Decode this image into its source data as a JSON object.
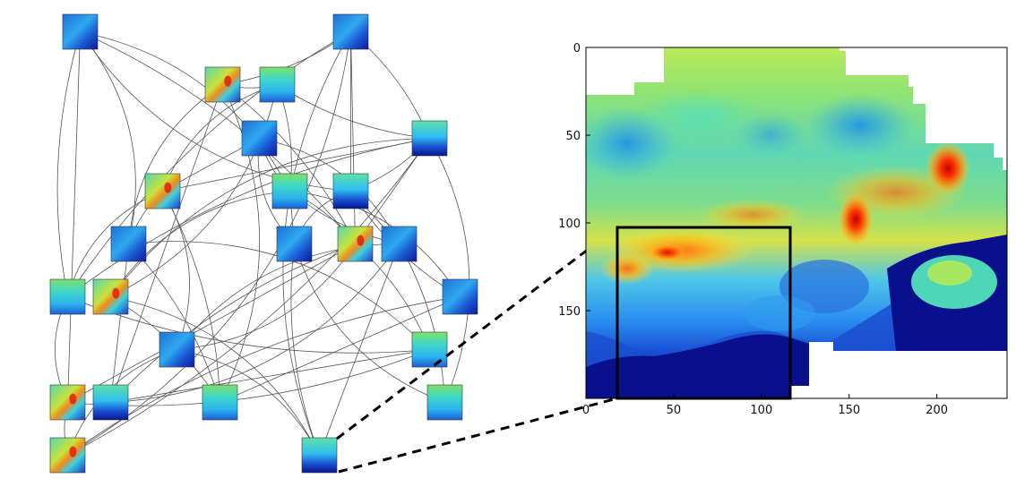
{
  "graph": {
    "nodes": [
      {
        "id": "n0",
        "style": "blue"
      },
      {
        "id": "n1",
        "style": "blue"
      },
      {
        "id": "n2",
        "style": "hot"
      },
      {
        "id": "n3",
        "style": "cyan"
      },
      {
        "id": "n4",
        "style": "blue"
      },
      {
        "id": "n5",
        "style": "dark"
      },
      {
        "id": "n6",
        "style": "hot"
      },
      {
        "id": "n7",
        "style": "cyan"
      },
      {
        "id": "n8",
        "style": "dark"
      },
      {
        "id": "n9",
        "style": "blue"
      },
      {
        "id": "n10",
        "style": "blue"
      },
      {
        "id": "n11",
        "style": "hot"
      },
      {
        "id": "n12",
        "style": "blue"
      },
      {
        "id": "n13",
        "style": "cyan"
      },
      {
        "id": "n14",
        "style": "hot"
      },
      {
        "id": "n15",
        "style": "blue"
      },
      {
        "id": "n16",
        "style": "blue"
      },
      {
        "id": "n17",
        "style": "cyan"
      },
      {
        "id": "n18",
        "style": "hot"
      },
      {
        "id": "n19",
        "style": "dark"
      },
      {
        "id": "n20",
        "style": "cyan"
      },
      {
        "id": "n21",
        "style": "cyan"
      },
      {
        "id": "n22",
        "style": "hot"
      },
      {
        "id": "n23",
        "style": "dark"
      }
    ],
    "edges": [
      [
        "n0",
        "n9"
      ],
      [
        "n0",
        "n11"
      ],
      [
        "n0",
        "n18"
      ],
      [
        "n0",
        "n13"
      ],
      [
        "n0",
        "n8"
      ],
      [
        "n0",
        "n7"
      ],
      [
        "n1",
        "n2"
      ],
      [
        "n1",
        "n8"
      ],
      [
        "n1",
        "n13"
      ],
      [
        "n1",
        "n23"
      ],
      [
        "n1",
        "n22"
      ],
      [
        "n1",
        "n5"
      ],
      [
        "n1",
        "n11"
      ],
      [
        "n2",
        "n3"
      ],
      [
        "n2",
        "n9"
      ],
      [
        "n2",
        "n20"
      ],
      [
        "n2",
        "n11"
      ],
      [
        "n2",
        "n19"
      ],
      [
        "n3",
        "n5"
      ],
      [
        "n3",
        "n6"
      ],
      [
        "n3",
        "n14"
      ],
      [
        "n3",
        "n7"
      ],
      [
        "n4",
        "n6"
      ],
      [
        "n4",
        "n7"
      ],
      [
        "n4",
        "n10"
      ],
      [
        "n4",
        "n12"
      ],
      [
        "n5",
        "n8"
      ],
      [
        "n5",
        "n11"
      ],
      [
        "n5",
        "n13"
      ],
      [
        "n5",
        "n14"
      ],
      [
        "n5",
        "n21"
      ],
      [
        "n5",
        "n22"
      ],
      [
        "n5",
        "n6"
      ],
      [
        "n6",
        "n9"
      ],
      [
        "n6",
        "n13"
      ],
      [
        "n6",
        "n16"
      ],
      [
        "n6",
        "n20"
      ],
      [
        "n7",
        "n10"
      ],
      [
        "n7",
        "n12"
      ],
      [
        "n7",
        "n14"
      ],
      [
        "n7",
        "n15"
      ],
      [
        "n7",
        "n11"
      ],
      [
        "n8",
        "n12"
      ],
      [
        "n8",
        "n15"
      ],
      [
        "n8",
        "n10"
      ],
      [
        "n9",
        "n17"
      ],
      [
        "n9",
        "n20"
      ],
      [
        "n9",
        "n19"
      ],
      [
        "n10",
        "n23"
      ],
      [
        "n10",
        "n21"
      ],
      [
        "n11",
        "n16"
      ],
      [
        "n11",
        "n17"
      ],
      [
        "n11",
        "n18"
      ],
      [
        "n11",
        "n19"
      ],
      [
        "n12",
        "n16"
      ],
      [
        "n12",
        "n19"
      ],
      [
        "n12",
        "n21"
      ],
      [
        "n12",
        "n23"
      ],
      [
        "n13",
        "n17"
      ],
      [
        "n13",
        "n18"
      ],
      [
        "n14",
        "n23"
      ],
      [
        "n14",
        "n20"
      ],
      [
        "n15",
        "n20"
      ],
      [
        "n15",
        "n22"
      ],
      [
        "n16",
        "n22"
      ],
      [
        "n16",
        "n23"
      ],
      [
        "n17",
        "n18"
      ],
      [
        "n17",
        "n19"
      ],
      [
        "n18",
        "n22"
      ]
    ]
  },
  "heatmap": {
    "colormap": "jet",
    "x_ticks": [
      "0",
      "50",
      "100",
      "150",
      "200"
    ],
    "y_ticks": [
      "0",
      "50",
      "100",
      "150"
    ],
    "xlim": [
      0,
      240
    ],
    "ylim": [
      200,
      0
    ],
    "zoom_box": {
      "x0": 18,
      "x1": 117,
      "y0": 102,
      "y1": 200
    },
    "callout_from_node": "n23"
  }
}
